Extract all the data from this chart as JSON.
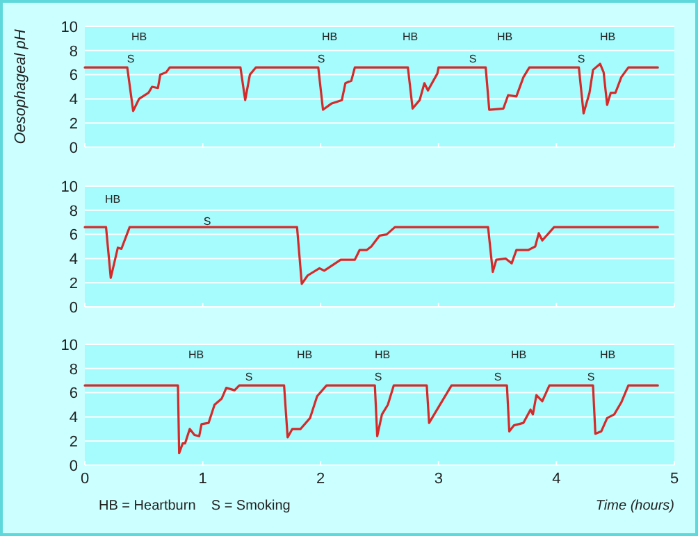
{
  "chart_data": [
    {
      "type": "line",
      "ylabel": "Oesophageal pH",
      "xlim": [
        0,
        5
      ],
      "xticks": [
        0,
        1,
        2,
        3,
        4,
        5
      ],
      "ylim": [
        0,
        10
      ],
      "yticks": [
        0,
        2,
        4,
        6,
        8,
        10
      ],
      "grid": "y",
      "tick_labels": "y",
      "series": [
        {
          "color": "#d42a2a",
          "x": [
            0,
            0.36,
            0.41,
            0.46,
            0.54,
            0.57,
            0.62,
            0.64,
            0.69,
            0.72,
            1.32,
            1.36,
            1.4,
            1.45,
            1.98,
            2.02,
            2.09,
            2.18,
            2.21,
            2.26,
            2.29,
            2.74,
            2.78,
            2.84,
            2.88,
            2.91,
            2.99,
            3.0,
            3.4,
            3.43,
            3.55,
            3.59,
            3.66,
            3.72,
            3.77,
            4.19,
            4.23,
            4.28,
            4.31,
            4.37,
            4.4,
            4.43,
            4.46,
            4.5,
            4.55,
            4.61,
            4.86
          ],
          "values": [
            6.6,
            6.6,
            3.0,
            4.0,
            4.5,
            5.0,
            4.9,
            6.0,
            6.2,
            6.6,
            6.6,
            3.9,
            6.0,
            6.6,
            6.6,
            3.1,
            3.6,
            3.9,
            5.3,
            5.5,
            6.6,
            6.6,
            3.2,
            3.9,
            5.3,
            4.7,
            6.1,
            6.6,
            6.6,
            3.1,
            3.2,
            4.3,
            4.2,
            5.8,
            6.6,
            6.6,
            2.8,
            4.5,
            6.4,
            6.9,
            6.2,
            3.5,
            4.5,
            4.5,
            5.8,
            6.6,
            6.6
          ]
        }
      ],
      "annotations": [
        "HB",
        "S",
        "HB",
        "S",
        "HB",
        "HB",
        "S",
        "HB",
        "S"
      ]
    },
    {
      "type": "line",
      "xlim": [
        0,
        5
      ],
      "xticks": [
        0,
        1,
        2,
        3,
        4,
        5
      ],
      "ylim": [
        0,
        10
      ],
      "yticks": [
        0,
        2,
        4,
        6,
        8,
        10
      ],
      "grid": "y",
      "tick_labels": "y",
      "series": [
        {
          "color": "#d42a2a",
          "x": [
            0,
            0.18,
            0.22,
            0.28,
            0.31,
            0.38,
            1.8,
            1.84,
            1.89,
            1.99,
            2.03,
            2.17,
            2.29,
            2.33,
            2.39,
            2.43,
            2.5,
            2.56,
            2.63,
            3.42,
            3.46,
            3.49,
            3.57,
            3.62,
            3.66,
            3.76,
            3.82,
            3.85,
            3.88,
            3.98,
            4.86
          ],
          "values": [
            6.6,
            6.6,
            2.4,
            4.9,
            4.8,
            6.6,
            6.6,
            1.9,
            2.6,
            3.2,
            3.0,
            3.9,
            3.9,
            4.7,
            4.7,
            5.0,
            5.9,
            6.0,
            6.6,
            6.6,
            2.9,
            3.9,
            4.0,
            3.6,
            4.7,
            4.7,
            5.0,
            6.1,
            5.5,
            6.6,
            6.6
          ]
        }
      ],
      "annotations": [
        "HB",
        "S"
      ]
    },
    {
      "type": "line",
      "xlabel": "Time (hours)",
      "xlim": [
        0,
        5
      ],
      "xticks": [
        0,
        1,
        2,
        3,
        4,
        5
      ],
      "ylim": [
        0,
        10
      ],
      "yticks": [
        0,
        2,
        4,
        6,
        8,
        10
      ],
      "grid": "y",
      "series": [
        {
          "color": "#d42a2a",
          "x": [
            0,
            0.79,
            0.8,
            0.83,
            0.85,
            0.89,
            0.93,
            0.97,
            0.99,
            1.05,
            1.1,
            1.16,
            1.2,
            1.27,
            1.31,
            1.69,
            1.72,
            1.76,
            1.83,
            1.91,
            1.97,
            2.05,
            2.46,
            2.48,
            2.52,
            2.57,
            2.62,
            2.9,
            2.92,
            3.11,
            3.58,
            3.6,
            3.64,
            3.72,
            3.78,
            3.8,
            3.83,
            3.88,
            3.94,
            4.31,
            4.33,
            4.38,
            4.43,
            4.49,
            4.55,
            4.61,
            4.86
          ],
          "values": [
            6.6,
            6.6,
            1.0,
            1.8,
            1.8,
            3.0,
            2.5,
            2.4,
            3.4,
            3.5,
            5.0,
            5.5,
            6.4,
            6.2,
            6.6,
            6.6,
            2.3,
            3.0,
            3.0,
            3.9,
            5.7,
            6.6,
            6.6,
            2.4,
            4.2,
            5.0,
            6.6,
            6.6,
            3.5,
            6.6,
            6.6,
            2.8,
            3.3,
            3.5,
            4.6,
            4.2,
            5.8,
            5.3,
            6.6,
            6.6,
            2.6,
            2.8,
            3.9,
            4.2,
            5.2,
            6.6,
            6.6
          ]
        }
      ],
      "annotations": [
        "HB",
        "S",
        "HB",
        "HB",
        "S",
        "HB",
        "S",
        "HB",
        "S",
        "HB = Heartburn    S = Smoking"
      ]
    }
  ]
}
